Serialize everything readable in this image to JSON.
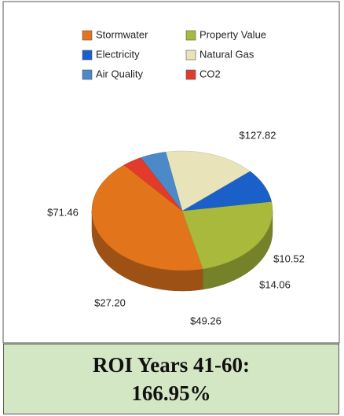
{
  "chart_data": {
    "type": "pie3d",
    "categories": [
      "Stormwater",
      "Property Value",
      "Electricity",
      "Natural Gas",
      "Air Quality",
      "CO2"
    ],
    "values": [
      127.82,
      71.46,
      27.2,
      49.26,
      14.06,
      10.52
    ],
    "value_labels": [
      "$127.82",
      "$71.46",
      "$27.20",
      "$49.26",
      "$14.06",
      "$10.52"
    ],
    "colors": [
      "#e2741c",
      "#a9b93c",
      "#1b60c9",
      "#e9e3ba",
      "#4b89c9",
      "#e23b2b"
    ],
    "legend": "top"
  },
  "roi_box": {
    "title": "ROI Years 41-60:",
    "value": "166.95%"
  }
}
